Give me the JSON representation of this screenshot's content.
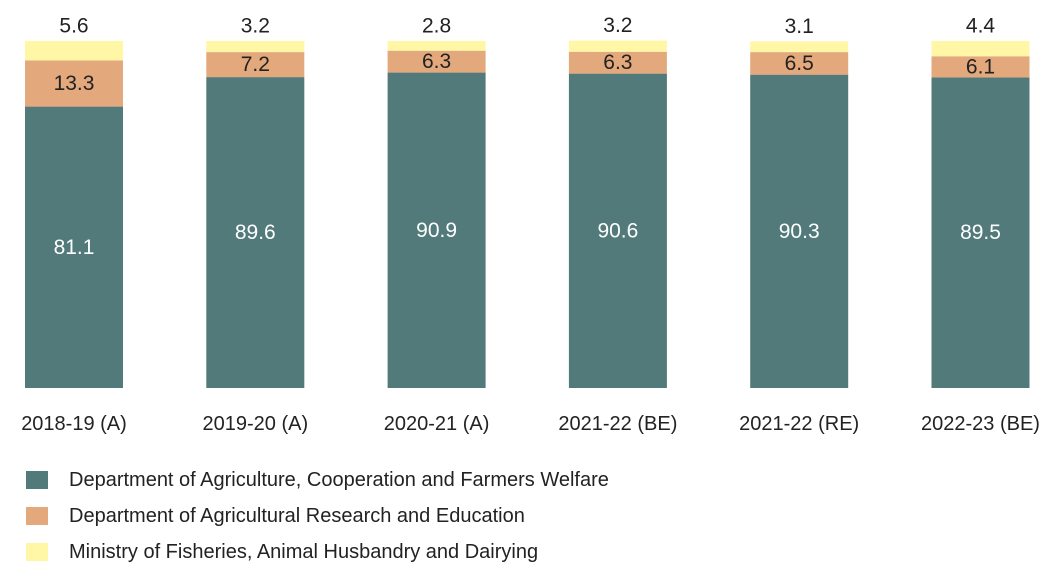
{
  "chart_data": {
    "type": "bar",
    "stacked": true,
    "normalized": true,
    "categories": [
      "2018-19 (A)",
      "2019-20 (A)",
      "2020-21 (A)",
      "2021-22 (BE)",
      "2021-22 (RE)",
      "2022-23 (BE)"
    ],
    "series": [
      {
        "name": "Department of Agriculture, Cooperation and Farmers Welfare",
        "color": "#527a7a",
        "values": [
          81.1,
          89.6,
          90.9,
          90.6,
          90.3,
          89.5
        ]
      },
      {
        "name": "Department of Agricultural Research and Education",
        "color": "#e3a87c",
        "values": [
          13.3,
          7.2,
          6.3,
          6.3,
          6.5,
          6.1
        ]
      },
      {
        "name": "Ministry of Fisheries, Animal Husbandry and Dairying",
        "color": "#fff6a6",
        "values": [
          5.6,
          3.2,
          2.8,
          3.2,
          3.1,
          4.4
        ]
      }
    ],
    "ylim": [
      0,
      100
    ],
    "legend_position": "bottom-left",
    "grid": false
  }
}
